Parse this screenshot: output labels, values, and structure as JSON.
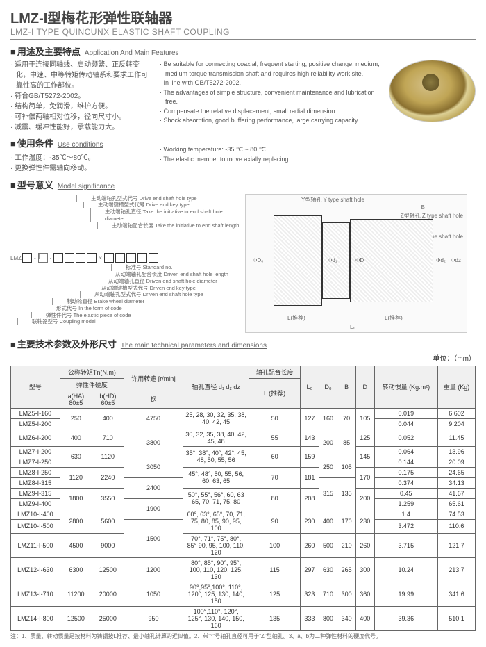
{
  "title_cn": "LMZ-I型梅花形弹性联轴器",
  "title_en": "LMZ-I TYPE QUINCUNX ELASTIC SHAFT COUPLING",
  "sec1_head_cn": "用途及主要特点",
  "sec1_head_en": "Application And Main Features",
  "features_cn": [
    "· 适用于连接同轴线、启动频繁、正反转变化，中速、中等转矩传动轴系和要求工作可靠性高的工作部位。",
    "· 符合GB/T5272-2002。",
    "· 结构简单，免润滑，维护方便。",
    "· 可补偿两轴相对位移，径向尺寸小。",
    "· 减震、缓冲性能好，承载能力大。"
  ],
  "features_en": [
    "· Be suitable for connecting coaxial, frequent starting, positive change, medium, medium torque transmission shaft and requires high reliability work site.",
    "· In line with GB/T5272-2002.",
    "· The advantages of simple structure, convenient maintenance and lubrication free.",
    "· Compensate the relative displacement, small radial dimension.",
    "· Shock absorption, good buffering performance, large carrying capacity."
  ],
  "sec2_head_cn": "使用条件",
  "sec2_head_en": "Use conditions",
  "conditions_cn": [
    "· 工作温度：-35℃～80℃。",
    "· 更换弹性件需轴向移动。"
  ],
  "conditions_en": [
    "· Working temperature: -35 ℃ ~ 80 ℃.",
    "· The elastic member to move axially replacing ."
  ],
  "sec3_head_cn": "型号意义",
  "sec3_head_en": "Model significance",
  "sig_prefix": "LMZ",
  "sig_labels_top": [
    "主动端轴孔型式代号 Drive end shaft hole type",
    "主动端键槽型式代号 Drive end key type",
    "主动端轴孔直径 Take the initiative to end shaft hole diameter",
    "主动端轴配合长度 Take the initiative to end shaft length"
  ],
  "sig_labels_bot": [
    "标准号 Standard no.",
    "从动端轴孔配合长度 Driven end shaft hole length",
    "从动端轴孔直径 Driven end shaft hole diameter",
    "从动端键槽型式代号 Driven end key type",
    "从动端轴孔型式代号 Driven end shaft hole type",
    "制动轮直径 Brake wheel diameter",
    "形式代号 In the form of code",
    "弹性件代号 The elastic piece of code",
    "联轴器型号 Coupling model"
  ],
  "diag_labels": {
    "y_hole": "Y型轴孔 Y type shaft hole",
    "z_hole": "Z型轴孔 Z type shaft hole",
    "j_hole": "J型轴孔 J type shaft hole",
    "b_dim": "B",
    "d0": "ΦD₀",
    "d": "ΦD",
    "d1": "Φd₁",
    "d2": "Φd₂",
    "dz": "Φdz",
    "l_rec": "L(推荐)",
    "l0": "L₀"
  },
  "sec4_head_cn": "主要技术参数及外形尺寸",
  "sec4_head_en": "The main technical parameters and dimensions",
  "unit": "单位：（mm）",
  "table": {
    "head_model": "型号",
    "head_torque": "公称转矩Tn(N.m)",
    "head_hardness": "弹性件硬度",
    "head_a": "a(HA)",
    "head_b": "b(HD)",
    "head_a_val": "80±5",
    "head_b_val": "60±5",
    "head_speed": "许用转速 [r/min]",
    "head_steel": "钢",
    "head_bore": "轴孔直径 d₁ d₂ dz",
    "head_borelen": "轴孔配合长度",
    "head_l": "L (推荐)",
    "head_l0": "L₀",
    "head_d0": "D₀",
    "head_B": "B",
    "head_D": "D",
    "head_inertia": "转动惯量 (Kg.m²)",
    "head_weight": "重量 (Kg)",
    "rows": [
      {
        "m": "LMZ5-I-160",
        "ta": "250",
        "tb": "400",
        "sp": "4750",
        "bore": "25, 28, 30, 32, 35, 38, 40, 42, 45",
        "l": "50",
        "l0": "127",
        "d0": "160",
        "b": "70",
        "d": "105",
        "in": "0.019",
        "w": "6.602"
      },
      {
        "m": "LMZ5-I-200",
        "ta": "",
        "tb": "",
        "sp": "",
        "bore": "",
        "l": "",
        "l0": "",
        "d0": "",
        "b": "",
        "d": "",
        "in": "0.044",
        "w": "9.204"
      },
      {
        "m": "LMZ6-I-200",
        "ta": "400",
        "tb": "710",
        "sp": "3800",
        "bore": "30, 32, 35, 38, 40, 42, 45, 48",
        "l": "55",
        "l0": "143",
        "d0": "200",
        "b": "85",
        "d": "125",
        "in": "0.052",
        "w": "11.45"
      },
      {
        "m": "LMZ7-I-200",
        "ta": "630",
        "tb": "1120",
        "sp": "",
        "bore": "35°, 38°, 40°, 42°, 45, 48, 50, 55, 56",
        "l": "60",
        "l0": "159",
        "d0": "",
        "b": "",
        "d": "145",
        "in": "0.064",
        "w": "13.96"
      },
      {
        "m": "LMZ7-I-250",
        "ta": "",
        "tb": "",
        "sp": "3050",
        "bore": "",
        "l": "",
        "l0": "",
        "d0": "250",
        "b": "105",
        "d": "",
        "in": "0.144",
        "w": "20.09"
      },
      {
        "m": "LMZ8-I-250",
        "ta": "1120",
        "tb": "2240",
        "sp": "",
        "bore": "45°, 48°, 50, 55, 56, 60, 63, 65",
        "l": "70",
        "l0": "181",
        "d0": "",
        "b": "",
        "d": "170",
        "in": "0.175",
        "w": "24.65"
      },
      {
        "m": "LMZ8-I-315",
        "ta": "",
        "tb": "",
        "sp": "2400",
        "bore": "",
        "l": "",
        "l0": "",
        "d0": "315",
        "b": "135",
        "d": "",
        "in": "0.374",
        "w": "34.13"
      },
      {
        "m": "LMZ9-I-315",
        "ta": "1800",
        "tb": "3550",
        "sp": "",
        "bore": "50°, 55°, 56°, 60, 63 65, 70, 71, 75, 80",
        "l": "80",
        "l0": "208",
        "d0": "",
        "b": "",
        "d": "200",
        "in": "0.45",
        "w": "41.67"
      },
      {
        "m": "LMZ9-I-400",
        "ta": "",
        "tb": "",
        "sp": "1900",
        "bore": "",
        "l": "",
        "l0": "",
        "d0": "",
        "b": "",
        "d": "",
        "in": "1.259",
        "w": "65.61"
      },
      {
        "m": "LMZ10-I-400",
        "ta": "2800",
        "tb": "5600",
        "sp": "",
        "bore": "60°, 63°, 65°, 70, 71, 75, 80, 85, 90, 95, 100",
        "l": "90",
        "l0": "230",
        "d0": "400",
        "b": "170",
        "d": "230",
        "in": "1.4",
        "w": "74.53"
      },
      {
        "m": "LMZ10-I-500",
        "ta": "",
        "tb": "",
        "sp": "1500",
        "bore": "",
        "l": "",
        "l0": "",
        "d0": "",
        "b": "",
        "d": "",
        "in": "3.472",
        "w": "110.6"
      },
      {
        "m": "LMZ11-I-500",
        "ta": "4500",
        "tb": "9000",
        "sp": "",
        "bore": "70°, 71°, 75°, 80°, 85° 90, 95, 100, 110, 120",
        "l": "100",
        "l0": "260",
        "d0": "500",
        "b": "210",
        "d": "260",
        "in": "3.715",
        "w": "121.7"
      },
      {
        "m": "LMZ12-I-630",
        "ta": "6300",
        "tb": "12500",
        "sp": "1200",
        "bore": "80°, 85°, 90°, 95°, 100, 110, 120, 125, 130",
        "l": "115",
        "l0": "297",
        "d0": "630",
        "b": "265",
        "d": "300",
        "in": "10.24",
        "w": "213.7"
      },
      {
        "m": "LMZ13-I-710",
        "ta": "11200",
        "tb": "20000",
        "sp": "1050",
        "bore": "90°,95°,100°, 110°, 120°, 125, 130, 140, 150",
        "l": "125",
        "l0": "323",
        "d0": "710",
        "b": "300",
        "d": "360",
        "in": "19.99",
        "w": "341.6"
      },
      {
        "m": "LMZ14-I-800",
        "ta": "12500",
        "tb": "25000",
        "sp": "950",
        "bore": "100°,110°, 120°, 125°, 130, 140, 150, 160",
        "l": "135",
        "l0": "333",
        "d0": "800",
        "b": "340",
        "d": "400",
        "in": "39.36",
        "w": "510.1"
      }
    ]
  },
  "footnote": "注：1、质量、转动惯量是按材料为铸钢按L推荐、最小轴孔计算的近似值。2、带\"°\"号轴孔直径可用于\"Z\"型轴孔。3、a、b为二种弹性材料的硬度代号。"
}
